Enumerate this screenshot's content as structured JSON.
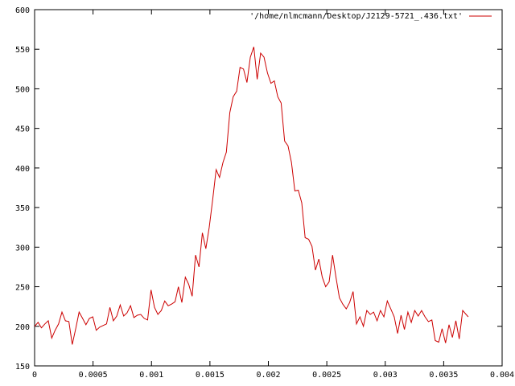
{
  "chart_data": {
    "type": "line",
    "title": "",
    "xlabel": "",
    "ylabel": "",
    "xlim": [
      0,
      0.004
    ],
    "ylim": [
      150,
      600
    ],
    "x_ticks": [
      0,
      0.0005,
      0.001,
      0.0015,
      0.002,
      0.0025,
      0.003,
      0.0035,
      0.004
    ],
    "x_tick_labels": [
      "0",
      "0.0005",
      "0.001",
      "0.0015",
      "0.002",
      "0.0025",
      "0.003",
      "0.0035",
      "0.004"
    ],
    "y_ticks": [
      150,
      200,
      250,
      300,
      350,
      400,
      450,
      500,
      550,
      600
    ],
    "y_tick_labels": [
      "150",
      "200",
      "250",
      "300",
      "350",
      "400",
      "450",
      "500",
      "550",
      "600"
    ],
    "grid": false,
    "legend_position": "top-right",
    "series": [
      {
        "name": "'/home/nlmcmann/Desktop/J2129-5721_.436.txt'",
        "color": "#cc0000",
        "x": [
          0.0,
          2.93e-05,
          5.86e-05,
          8.79e-05,
          0.0001172,
          0.0001465,
          0.0001758,
          0.0002051,
          0.0002344,
          0.0002637,
          0.000293,
          0.0003223,
          0.0003516,
          0.0003809,
          0.0004102,
          0.0004395,
          0.0004688,
          0.0004981,
          0.0005274,
          0.0005567,
          0.000586,
          0.0006153,
          0.0006446,
          0.0006739,
          0.0007032,
          0.0007325,
          0.0007618,
          0.0007911,
          0.0008204,
          0.0008497,
          0.000879,
          0.0009083,
          0.0009376,
          0.0009669,
          0.0009962,
          0.0010255,
          0.0010548,
          0.0010841,
          0.0011134,
          0.0011427,
          0.001172,
          0.0012013,
          0.0012306,
          0.0012599,
          0.0012892,
          0.0013185,
          0.0013478,
          0.0013771,
          0.0014064,
          0.0014357,
          0.001465,
          0.0014943,
          0.0015236,
          0.0015529,
          0.0015822,
          0.0016115,
          0.0016408,
          0.0016701,
          0.0016994,
          0.0017287,
          0.001758,
          0.0017873,
          0.0018166,
          0.0018459,
          0.0018752,
          0.0019045,
          0.0019338,
          0.0019631,
          0.0019924,
          0.0020217,
          0.002051,
          0.0020803,
          0.0021096,
          0.0021389,
          0.0021682,
          0.0021975,
          0.0022268,
          0.0022561,
          0.0022854,
          0.0023147,
          0.002344,
          0.0023733,
          0.0024026,
          0.0024319,
          0.0024612,
          0.0024905,
          0.0025198,
          0.0025491,
          0.0025784,
          0.0026077,
          0.002637,
          0.0026663,
          0.0026956,
          0.0027249,
          0.0027542,
          0.0027835,
          0.0028128,
          0.0028421,
          0.0028714,
          0.0029007,
          0.00293,
          0.0029593,
          0.0029886,
          0.0030179,
          0.0030472,
          0.0030765,
          0.0031058,
          0.0031351,
          0.0031644,
          0.0031937,
          0.003223,
          0.0032523,
          0.0032816,
          0.0033109,
          0.0033402,
          0.0033695,
          0.0033988,
          0.0034281,
          0.0034574,
          0.0034867,
          0.003516,
          0.0035453,
          0.0035746,
          0.0036039,
          0.0036332,
          0.0036625,
          0.0036918,
          0.00371
        ],
        "y": [
          200,
          205,
          198,
          203,
          207,
          185,
          195,
          203,
          218,
          207,
          206,
          177,
          197,
          218,
          210,
          202,
          210,
          212,
          195,
          199,
          201,
          203,
          224,
          207,
          213,
          227,
          213,
          217,
          226,
          211,
          214,
          215,
          210,
          208,
          246,
          224,
          215,
          220,
          232,
          226,
          228,
          231,
          250,
          230,
          262,
          253,
          238,
          290,
          275,
          318,
          298,
          325,
          360,
          398,
          388,
          407,
          420,
          470,
          490,
          497,
          527,
          525,
          508,
          540,
          553,
          512,
          545,
          540,
          520,
          507,
          510,
          490,
          482,
          434,
          428,
          407,
          371,
          372,
          356,
          312,
          310,
          301,
          271,
          285,
          262,
          250,
          256,
          290,
          262,
          236,
          228,
          222,
          230,
          244,
          203,
          212,
          200,
          220,
          215,
          218,
          207,
          220,
          212,
          232,
          222,
          212,
          191,
          214,
          196,
          218,
          205,
          220,
          213,
          220,
          212,
          206,
          208,
          182,
          180,
          197,
          179,
          202,
          186,
          207,
          184,
          220,
          215,
          212
        ]
      }
    ]
  }
}
